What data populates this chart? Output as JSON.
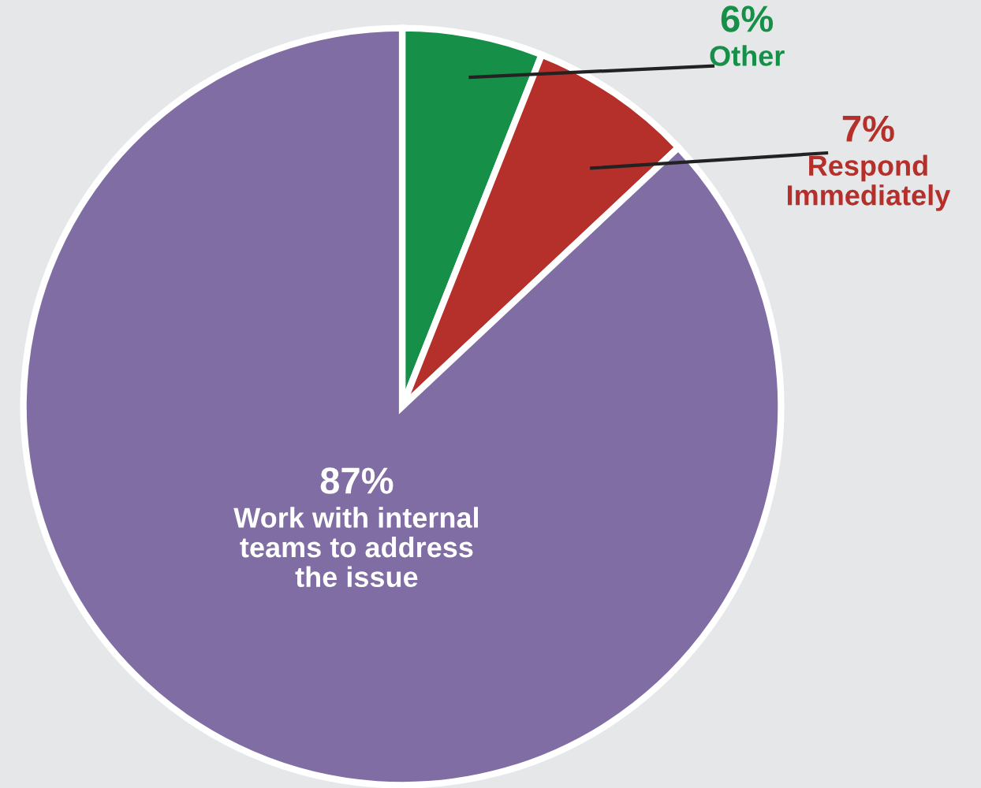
{
  "chart_data": {
    "type": "pie",
    "categories": [
      "Other",
      "Respond\nImmediately",
      "Work with internal\nteams to address\nthe issue"
    ],
    "values": [
      6,
      7,
      87
    ],
    "colors": [
      "#168f48",
      "#b52f2b",
      "#7f6da3"
    ],
    "value_labels": [
      "6%",
      "7%",
      "87%"
    ]
  }
}
